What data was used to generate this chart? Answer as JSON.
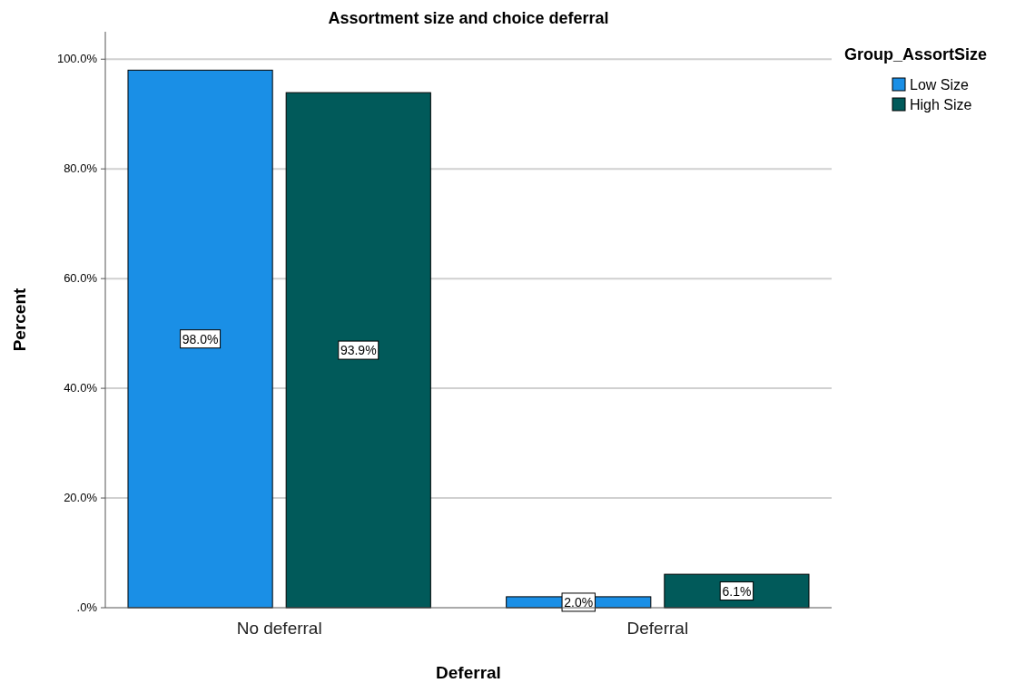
{
  "chart_data": {
    "type": "bar",
    "title": "Assortment size and choice deferral",
    "xlabel": "Deferral",
    "ylabel": "Percent",
    "legend_title": "Group_AssortSize",
    "categories": [
      "No deferral",
      "Deferral"
    ],
    "series": [
      {
        "name": "Low Size",
        "color": "#1a8fe6",
        "values": [
          98.0,
          2.0
        ],
        "value_labels": [
          "98.0%",
          "2.0%"
        ]
      },
      {
        "name": "High Size",
        "color": "#015a5a",
        "values": [
          93.9,
          6.1
        ],
        "value_labels": [
          "93.9%",
          "6.1%"
        ]
      }
    ],
    "ylim": [
      0,
      105
    ],
    "yticks": [
      {
        "value": 0,
        "label": ".0%"
      },
      {
        "value": 20,
        "label": "20.0%"
      },
      {
        "value": 40,
        "label": "40.0%"
      },
      {
        "value": 60,
        "label": "60.0%"
      },
      {
        "value": 80,
        "label": "80.0%"
      },
      {
        "value": 100,
        "label": "100.0%"
      }
    ],
    "grid": "y",
    "legend": "top right"
  }
}
